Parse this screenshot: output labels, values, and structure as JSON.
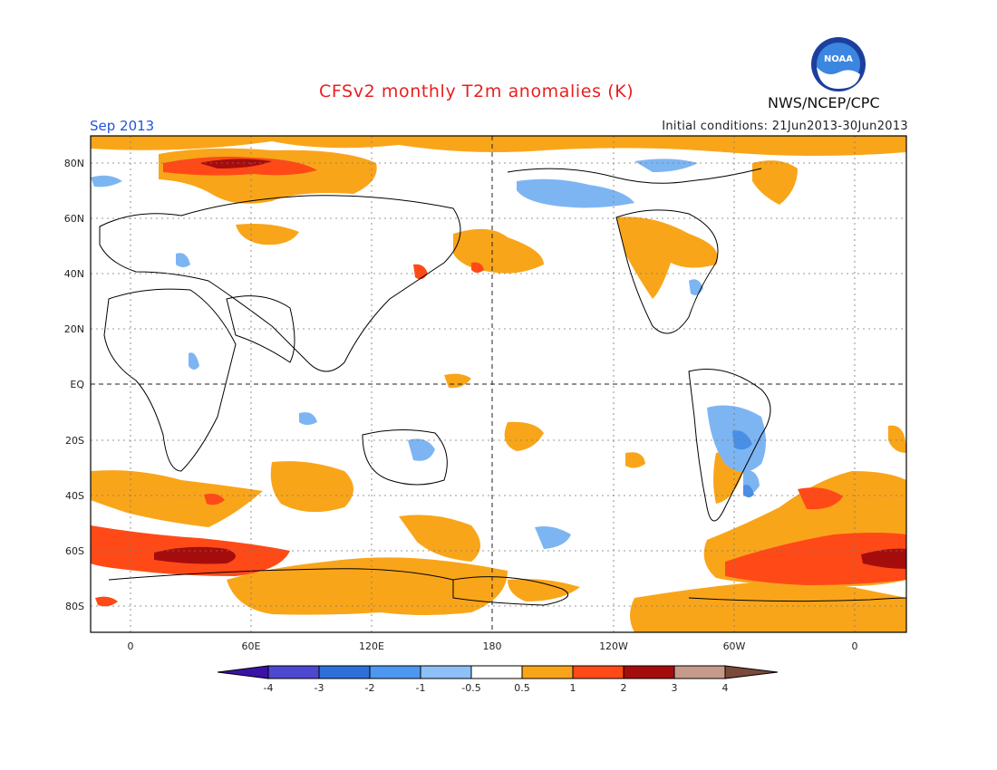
{
  "header": {
    "title": "CFSv2 monthly T2m anomalies (K)",
    "month": "Sep 2013",
    "initial_conditions": "Initial conditions: 21Jun2013-30Jun2013",
    "agency": "NWS/NCEP/CPC",
    "logo_text": "NOAA"
  },
  "map": {
    "lat_labels": [
      "80N",
      "60N",
      "40N",
      "20N",
      "EQ",
      "20S",
      "40S",
      "60S",
      "80S"
    ],
    "lon_labels": [
      "0",
      "60E",
      "120E",
      "180",
      "120W",
      "60W",
      "0"
    ],
    "colors": {
      "warm_05_1": "#f9a51a",
      "warm_1_2": "#ff4a17",
      "warm_2_3": "#a50d0d",
      "cool_m05_m1": "#7db5f2",
      "cool_m1_m2": "#4a8fe6"
    }
  },
  "colorbar": {
    "ticks": [
      "-4",
      "-3",
      "-2",
      "-1",
      "-0.5",
      "0.5",
      "1",
      "2",
      "3",
      "4"
    ],
    "colors": [
      "#3a12a8",
      "#4c48d0",
      "#2f6fdc",
      "#4d97f0",
      "#8cc0f6",
      "#ffffff",
      "#f9a51a",
      "#ff4a17",
      "#a50d0d",
      "#c69a8a",
      "#7a4a3a"
    ]
  }
}
